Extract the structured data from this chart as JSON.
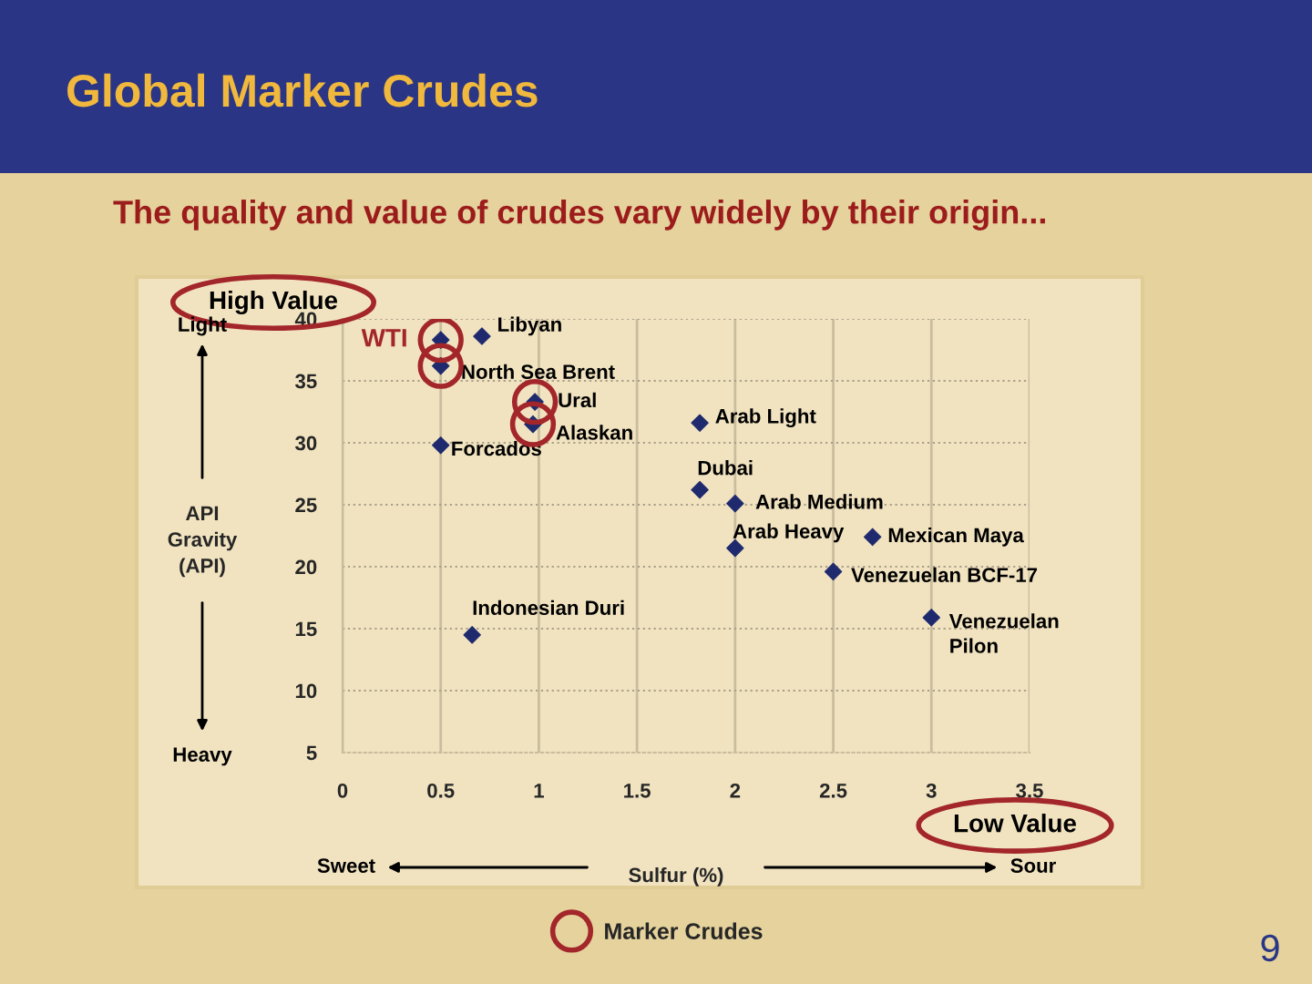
{
  "chart_data": {
    "type": "scatter",
    "title": "Global Marker Crudes",
    "subtitle": "The quality and value of crudes vary widely by their origin...",
    "xlabel": "Sulfur (%)",
    "ylabel": "API\nGravity\n(API)",
    "xlim": [
      0,
      3.5
    ],
    "xticks": [
      0,
      0.5,
      1,
      1.5,
      2,
      2.5,
      3,
      3.5
    ],
    "ylim": [
      5,
      40
    ],
    "yticks": [
      5,
      10,
      15,
      20,
      25,
      30,
      35,
      40
    ],
    "grid": true,
    "legend": "bottom",
    "series": [
      {
        "marker": "diamond",
        "color": "#1f2a6e",
        "x": [
          0.5,
          0.71,
          0.5,
          0.98,
          0.97,
          0.5,
          0.66,
          1.82,
          1.82,
          2.0,
          2.0,
          2.7,
          2.5,
          3.0
        ],
        "values": [
          38.3,
          38.6,
          36.2,
          33.3,
          31.5,
          29.8,
          14.5,
          31.6,
          26.2,
          25.1,
          21.5,
          22.4,
          19.6,
          15.9
        ]
      },
      {
        "marker": "circle",
        "name": "Marker Crudes",
        "color": "#a3262a",
        "x": [
          0.5,
          0.5,
          0.98,
          0.97
        ],
        "values": [
          38.3,
          36.2,
          33.3,
          31.5
        ]
      }
    ],
    "annotations": [
      "High Value",
      "Low Value",
      "Light",
      "Heavy",
      "Sweet",
      "Sour",
      "9",
      {
        "text": "WTI",
        "x": 0.5,
        "y": 38.3
      },
      {
        "text": "Libyan",
        "x": 0.71,
        "y": 38.6
      },
      {
        "text": "North Sea Brent",
        "x": 0.5,
        "y": 36.2
      },
      {
        "text": "Ural",
        "x": 0.98,
        "y": 33.3
      },
      {
        "text": "Alaskan",
        "x": 0.97,
        "y": 31.5
      },
      {
        "text": "Forcados",
        "x": 0.5,
        "y": 29.8
      },
      {
        "text": "Indonesian Duri",
        "x": 0.66,
        "y": 14.5
      },
      {
        "text": "Arab Light",
        "x": 1.82,
        "y": 31.6
      },
      {
        "text": "Dubai",
        "x": 1.82,
        "y": 26.2
      },
      {
        "text": "Arab Medium",
        "x": 2.0,
        "y": 25.1
      },
      {
        "text": "Arab Heavy",
        "x": 2.0,
        "y": 21.5
      },
      {
        "text": "Mexican Maya",
        "x": 2.7,
        "y": 22.4
      },
      {
        "text": "Venezuelan BCF-17",
        "x": 2.5,
        "y": 19.6
      },
      {
        "text": "Venezuelan\nPilon",
        "x": 3.0,
        "y": 15.9
      }
    ]
  }
}
